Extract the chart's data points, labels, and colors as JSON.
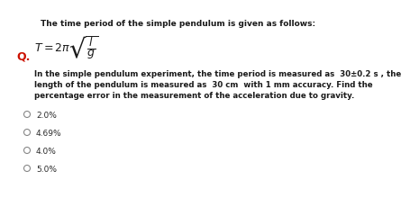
{
  "bg_color": "#ffffff",
  "title_text": "The time period of the simple pendulum is given as follows:",
  "q_label": "Q.",
  "q_color": "#cc1100",
  "question_line1": "In the simple pendulum experiment, the time period is measured as  30±0.2 s , the",
  "question_line2": "length of the pendulum is measured as  30 cm  with 1 mm accuracy. Find the",
  "question_line3": "percentage error in the measurement of the acceleration due to gravity.",
  "options": [
    "2.0%",
    "4.69%",
    "4.0%",
    "5.0%"
  ],
  "title_fontsize": 6.5,
  "formula_fontsize": 9.0,
  "q_fontsize": 9.0,
  "question_fontsize": 6.2,
  "option_fontsize": 6.5,
  "title_color": "#1a1a1a",
  "question_color": "#1a1a1a",
  "option_color": "#2a2a2a",
  "circle_color": "#888888"
}
